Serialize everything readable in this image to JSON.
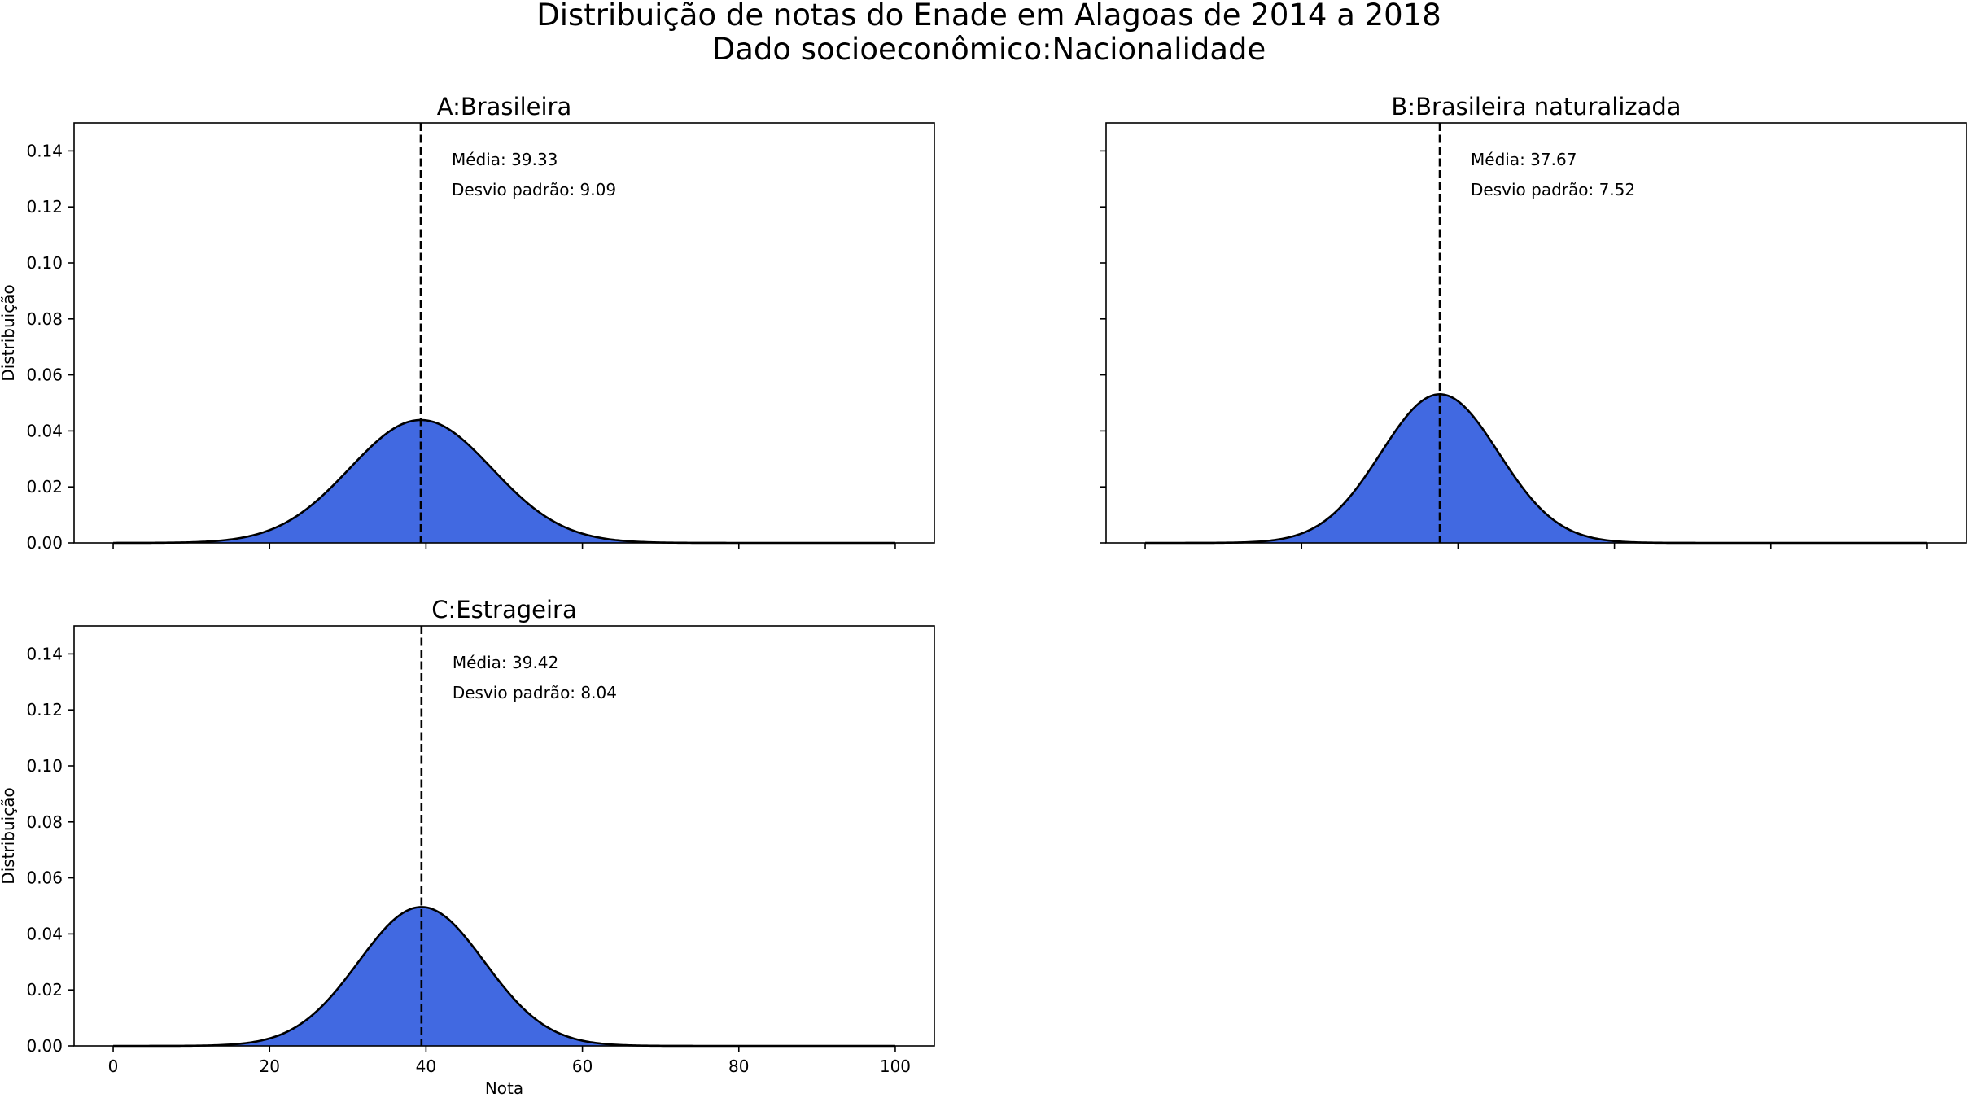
{
  "figure": {
    "title_line1": "Distribuição de notas do Enade em Alagoas de 2014 a 2018",
    "title_line2": "Dado socioeconômico:Nacionalidade"
  },
  "chart_data": [
    {
      "type": "area",
      "title": "A:Brasileira",
      "xlabel": "",
      "ylabel": "Distribuição",
      "xlim": [
        -5,
        105
      ],
      "ylim": [
        0,
        0.15
      ],
      "xticks": [
        0,
        20,
        40,
        60,
        80,
        100
      ],
      "xtick_labels_visible": false,
      "yticks": [
        0.0,
        0.02,
        0.04,
        0.06,
        0.08,
        0.1,
        0.12,
        0.14
      ],
      "ytick_labels_visible": true,
      "series": [
        {
          "mean": 39.33,
          "std": 9.09,
          "peak": 0.0439
        }
      ],
      "mean_line_x": 39.33,
      "annotations": [
        "Média: 39.33",
        "Desvio padrão: 9.09"
      ],
      "fill_color": "#4169e1",
      "line_color": "#000000",
      "grid": false
    },
    {
      "type": "area",
      "title": "B:Brasileira naturalizada",
      "xlabel": "",
      "ylabel": "",
      "xlim": [
        -5,
        105
      ],
      "ylim": [
        0,
        0.15
      ],
      "xticks": [
        0,
        20,
        40,
        60,
        80,
        100
      ],
      "xtick_labels_visible": false,
      "yticks": [
        0.0,
        0.02,
        0.04,
        0.06,
        0.08,
        0.1,
        0.12,
        0.14
      ],
      "ytick_labels_visible": false,
      "series": [
        {
          "mean": 37.67,
          "std": 7.52,
          "peak": 0.0531
        }
      ],
      "mean_line_x": 37.67,
      "annotations": [
        "Média: 37.67",
        "Desvio padrão: 7.52"
      ],
      "fill_color": "#4169e1",
      "line_color": "#000000",
      "grid": false
    },
    {
      "type": "area",
      "title": "C:Estrageira",
      "xlabel": "Nota",
      "ylabel": "Distribuição",
      "xlim": [
        -5,
        105
      ],
      "ylim": [
        0,
        0.15
      ],
      "xticks": [
        0,
        20,
        40,
        60,
        80,
        100
      ],
      "xtick_labels_visible": true,
      "yticks": [
        0.0,
        0.02,
        0.04,
        0.06,
        0.08,
        0.1,
        0.12,
        0.14
      ],
      "ytick_labels_visible": true,
      "series": [
        {
          "mean": 39.42,
          "std": 8.04,
          "peak": 0.0496
        }
      ],
      "mean_line_x": 39.42,
      "annotations": [
        "Média: 39.42",
        "Desvio padrão: 8.04"
      ],
      "fill_color": "#4169e1",
      "line_color": "#000000",
      "grid": false
    }
  ]
}
